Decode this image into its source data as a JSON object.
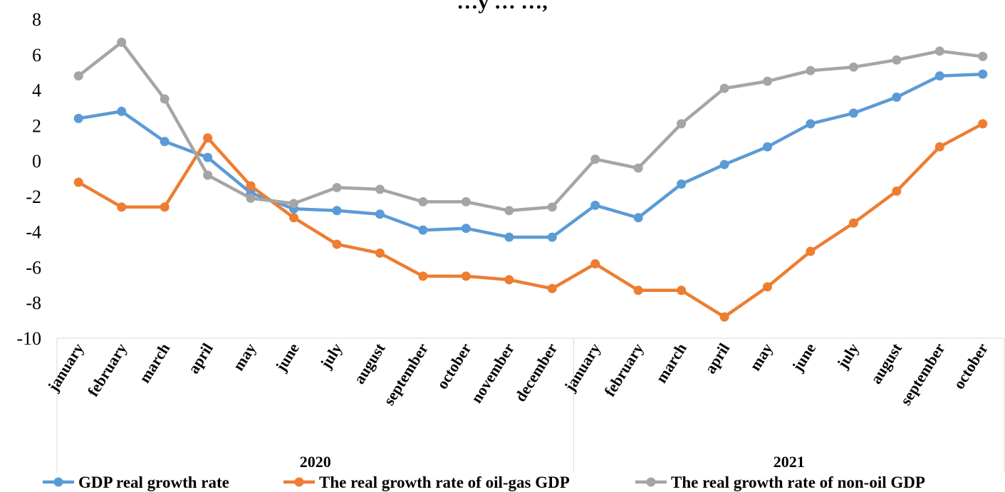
{
  "chart_data": {
    "type": "line",
    "title": "…y … …,",
    "xlabel": "",
    "ylabel": "",
    "ylim": [
      -10,
      8
    ],
    "yticks": [
      8,
      6,
      4,
      2,
      0,
      -2,
      -4,
      -6,
      -8,
      -10
    ],
    "grid": false,
    "legend_position": "bottom",
    "categories": [
      "january",
      "february",
      "march",
      "april",
      "may",
      "june",
      "july",
      "august",
      "september",
      "october",
      "november",
      "december",
      "january",
      "february",
      "march",
      "april",
      "may",
      "june",
      "july",
      "august",
      "september",
      "october"
    ],
    "groups": [
      {
        "label": "2020",
        "count": 12
      },
      {
        "label": "2021",
        "count": 10
      }
    ],
    "series": [
      {
        "name": "GDP real growth rate",
        "color": "#5b9bd5",
        "values": [
          2.4,
          2.8,
          1.1,
          0.2,
          -1.8,
          -2.7,
          -2.8,
          -3.0,
          -3.9,
          -3.8,
          -4.3,
          -4.3,
          -2.5,
          -3.2,
          -1.3,
          -0.2,
          0.8,
          2.1,
          2.7,
          3.6,
          4.8,
          4.9
        ]
      },
      {
        "name": "The real growth rate of oil-gas GDP",
        "color": "#ed7d31",
        "values": [
          -1.2,
          -2.6,
          -2.6,
          1.3,
          -1.4,
          -3.2,
          -4.7,
          -5.2,
          -6.5,
          -6.5,
          -6.7,
          -7.2,
          -5.8,
          -7.3,
          -7.3,
          -8.8,
          -7.1,
          -5.1,
          -3.5,
          -1.7,
          0.8,
          2.1
        ]
      },
      {
        "name": "The real growth rate of non-oil GDP",
        "color": "#a5a5a5",
        "values": [
          4.8,
          6.7,
          3.5,
          -0.8,
          -2.1,
          -2.4,
          -1.5,
          -1.6,
          -2.3,
          -2.3,
          -2.8,
          -2.6,
          0.1,
          -0.4,
          2.1,
          4.1,
          4.5,
          5.1,
          5.3,
          5.7,
          6.2,
          5.9
        ]
      }
    ]
  }
}
